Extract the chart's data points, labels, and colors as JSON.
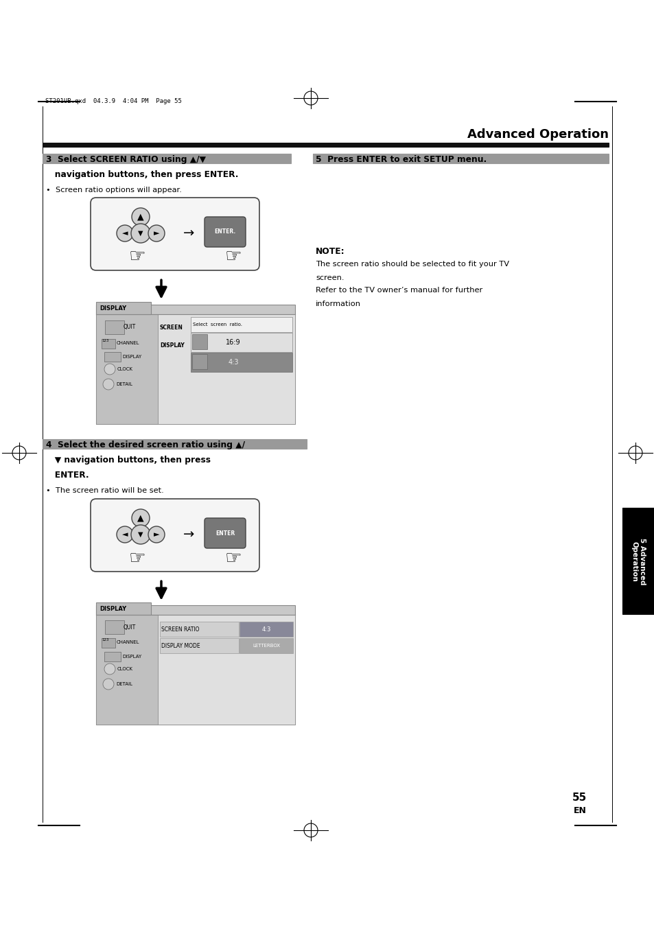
{
  "page_width": 9.54,
  "page_height": 13.51,
  "bg_color": "#ffffff",
  "title": "Advanced Operation",
  "header_text": "ST201UB.qxd  04.3.9  4:04 PM  Page 55",
  "page_number": "55",
  "page_number_sub": "EN",
  "sidebar_text": "5 Advanced\nOperation",
  "sidebar_bg": "#000000",
  "sidebar_text_color": "#ffffff"
}
